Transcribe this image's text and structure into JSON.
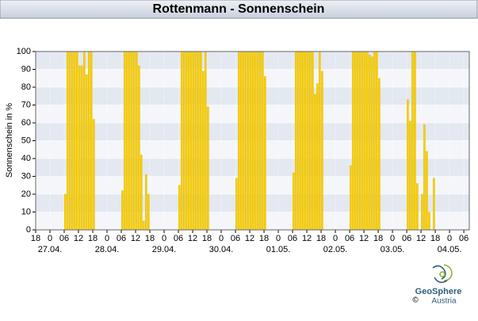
{
  "chart_data": {
    "type": "bar",
    "title": "Rottenmann - Sonnenschein",
    "y_label": "Sonnenschein in %",
    "logo": {
      "name": "GeoSphere",
      "sub": "Austria",
      "copyright": "©"
    },
    "color": "#f7cf00",
    "x": [
      12,
      13,
      14,
      15,
      16,
      17,
      18,
      19,
      20,
      21,
      22,
      23,
      24,
      36,
      37,
      38,
      39,
      40,
      41,
      42,
      43,
      44,
      45,
      46,
      47,
      60,
      61,
      62,
      63,
      64,
      65,
      66,
      67,
      68,
      69,
      70,
      71,
      72,
      84,
      85,
      86,
      87,
      88,
      89,
      90,
      91,
      92,
      93,
      94,
      95,
      96,
      108,
      109,
      110,
      111,
      112,
      113,
      114,
      115,
      116,
      117,
      118,
      119,
      120,
      132,
      133,
      134,
      135,
      136,
      137,
      138,
      139,
      140,
      141,
      142,
      143,
      144,
      156,
      157,
      158,
      159,
      160,
      162,
      163,
      164,
      165,
      167
    ],
    "values": [
      20,
      100,
      100,
      100,
      100,
      100,
      92,
      92,
      100,
      87,
      100,
      100,
      62,
      22,
      100,
      100,
      100,
      100,
      100,
      100,
      92,
      42,
      5,
      31,
      20,
      25,
      100,
      100,
      100,
      100,
      100,
      100,
      100,
      100,
      100,
      89,
      100,
      69,
      29,
      100,
      100,
      100,
      100,
      100,
      100,
      100,
      100,
      100,
      100,
      100,
      86,
      32,
      100,
      100,
      100,
      100,
      100,
      100,
      100,
      100,
      76,
      82,
      100,
      89,
      36,
      100,
      100,
      100,
      100,
      100,
      100,
      100,
      98,
      97,
      100,
      100,
      85,
      73,
      61,
      100,
      100,
      26,
      20,
      59,
      44,
      10,
      29
    ],
    "xlim": [
      0,
      182.3
    ],
    "xticks": [
      {
        "value": 0,
        "label": "18"
      },
      {
        "value": 6,
        "label": "0"
      },
      {
        "value": 12,
        "label": "06"
      },
      {
        "value": 18,
        "label": "12"
      },
      {
        "value": 24,
        "label": "18"
      },
      {
        "value": 30,
        "label": "0"
      },
      {
        "value": 36,
        "label": "06"
      },
      {
        "value": 42,
        "label": "12"
      },
      {
        "value": 48,
        "label": "18"
      },
      {
        "value": 54,
        "label": "0"
      },
      {
        "value": 60,
        "label": "06"
      },
      {
        "value": 66,
        "label": "12"
      },
      {
        "value": 72,
        "label": "18"
      },
      {
        "value": 78,
        "label": "0"
      },
      {
        "value": 84,
        "label": "06"
      },
      {
        "value": 90,
        "label": "12"
      },
      {
        "value": 96,
        "label": "18"
      },
      {
        "value": 102,
        "label": "0"
      },
      {
        "value": 108,
        "label": "06"
      },
      {
        "value": 114,
        "label": "12"
      },
      {
        "value": 120,
        "label": "18"
      },
      {
        "value": 126,
        "label": "0"
      },
      {
        "value": 132,
        "label": "06"
      },
      {
        "value": 138,
        "label": "12"
      },
      {
        "value": 144,
        "label": "18"
      },
      {
        "value": 150,
        "label": "0"
      },
      {
        "value": 156,
        "label": "06"
      },
      {
        "value": 162,
        "label": "12"
      },
      {
        "value": 168,
        "label": "18"
      },
      {
        "value": 174,
        "label": "0"
      },
      {
        "value": 180,
        "label": "06"
      }
    ],
    "day_labels": [
      {
        "value": 6,
        "label": "27.04."
      },
      {
        "value": 30,
        "label": "28.04."
      },
      {
        "value": 54,
        "label": "29.04."
      },
      {
        "value": 78,
        "label": "30.04."
      },
      {
        "value": 102,
        "label": "01.05."
      },
      {
        "value": 126,
        "label": "02.05."
      },
      {
        "value": 150,
        "label": "03.05."
      },
      {
        "value": 174,
        "label": "04.05."
      }
    ],
    "ylim": [
      0,
      100
    ],
    "yticks": [
      0,
      10,
      20,
      30,
      40,
      50,
      60,
      70,
      80,
      90,
      100
    ],
    "grid": true
  }
}
